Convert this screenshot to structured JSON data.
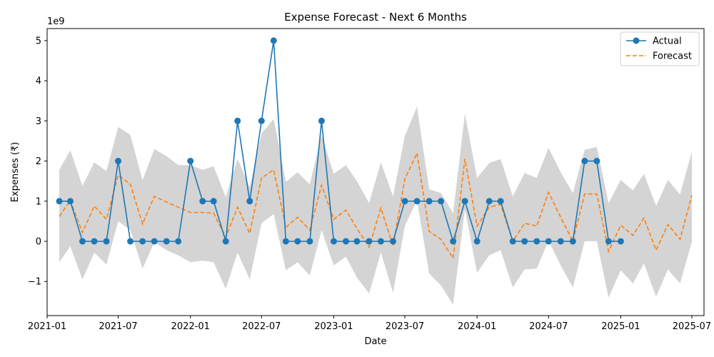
{
  "chart_data": {
    "type": "line",
    "title": "Expense Forecast - Next 6 Months",
    "xlabel": "Date",
    "ylabel": "Expenses (₹)",
    "y_offset_text": "1e9",
    "y_multiplier": 1000000000,
    "xlim": [
      "2021-01-01",
      "2025-08-01"
    ],
    "ylim": [
      -1.85,
      5.3
    ],
    "x_ticks": [
      "2021-01",
      "2021-07",
      "2022-01",
      "2022-07",
      "2023-01",
      "2023-07",
      "2024-01",
      "2024-07",
      "2025-01",
      "2025-07"
    ],
    "y_ticks": [
      -1,
      0,
      1,
      2,
      3,
      4,
      5
    ],
    "legend_position": "top-right",
    "colors": {
      "actual": "#1f77b4",
      "forecast": "#ff7f0e",
      "band": "#bdbdbd"
    },
    "series": [
      {
        "name": "Actual",
        "style": "solid line with circle markers",
        "x": [
          "2021-02",
          "2021-03",
          "2021-04",
          "2021-05",
          "2021-06",
          "2021-07",
          "2021-08",
          "2021-09",
          "2021-10",
          "2021-11",
          "2021-12",
          "2022-01",
          "2022-02",
          "2022-03",
          "2022-04",
          "2022-05",
          "2022-06",
          "2022-07",
          "2022-08",
          "2022-09",
          "2022-10",
          "2022-11",
          "2022-12",
          "2023-01",
          "2023-02",
          "2023-03",
          "2023-04",
          "2023-05",
          "2023-06",
          "2023-07",
          "2023-08",
          "2023-09",
          "2023-10",
          "2023-11",
          "2023-12",
          "2024-01",
          "2024-02",
          "2024-03",
          "2024-04",
          "2024-05",
          "2024-06",
          "2024-07",
          "2024-08",
          "2024-09",
          "2024-10",
          "2024-11",
          "2024-12",
          "2025-01"
        ],
        "values": [
          1,
          1,
          0,
          0,
          0,
          2,
          0,
          0,
          0,
          0,
          0,
          2,
          1,
          1,
          0,
          3,
          1,
          3,
          5,
          0,
          0,
          0,
          3,
          0,
          0,
          0,
          0,
          0,
          0,
          1,
          1,
          1,
          1,
          0,
          1,
          0,
          1,
          1,
          0,
          0,
          0,
          0,
          0,
          0,
          2,
          2,
          0,
          0
        ]
      },
      {
        "name": "Forecast",
        "style": "dashed line",
        "x": [
          "2021-02",
          "2021-03",
          "2021-04",
          "2021-05",
          "2021-06",
          "2021-07",
          "2021-08",
          "2021-09",
          "2021-10",
          "2021-11",
          "2021-12",
          "2022-01",
          "2022-02",
          "2022-03",
          "2022-04",
          "2022-05",
          "2022-06",
          "2022-07",
          "2022-08",
          "2022-09",
          "2022-10",
          "2022-11",
          "2022-12",
          "2023-01",
          "2023-02",
          "2023-03",
          "2023-04",
          "2023-05",
          "2023-06",
          "2023-07",
          "2023-08",
          "2023-09",
          "2023-10",
          "2023-11",
          "2023-12",
          "2024-01",
          "2024-02",
          "2024-03",
          "2024-04",
          "2024-05",
          "2024-06",
          "2024-07",
          "2024-08",
          "2024-09",
          "2024-10",
          "2024-11",
          "2024-12",
          "2025-01",
          "2025-02",
          "2025-03",
          "2025-04",
          "2025-05",
          "2025-06",
          "2025-07"
        ],
        "values": [
          0.62,
          1.02,
          0.22,
          0.88,
          0.55,
          1.65,
          1.42,
          0.43,
          1.12,
          0.98,
          0.85,
          0.72,
          0.72,
          0.7,
          0.1,
          0.85,
          0.2,
          1.58,
          1.78,
          0.35,
          0.6,
          0.28,
          1.4,
          0.55,
          0.78,
          0.32,
          -0.15,
          0.83,
          -0.12,
          1.55,
          2.2,
          0.25,
          0.05,
          -0.42,
          2.05,
          0.38,
          0.85,
          0.92,
          0.0,
          0.45,
          0.38,
          1.22,
          0.6,
          0.0,
          1.18,
          1.18,
          -0.25,
          0.4,
          0.15,
          0.58,
          -0.22,
          0.42,
          0.05,
          1.15
        ]
      },
      {
        "name": "Confidence band",
        "style": "shaded area",
        "x": [
          "2021-02",
          "2021-03",
          "2021-04",
          "2021-05",
          "2021-06",
          "2021-07",
          "2021-08",
          "2021-09",
          "2021-10",
          "2021-11",
          "2021-12",
          "2022-01",
          "2022-02",
          "2022-03",
          "2022-04",
          "2022-05",
          "2022-06",
          "2022-07",
          "2022-08",
          "2022-09",
          "2022-10",
          "2022-11",
          "2022-12",
          "2023-01",
          "2023-02",
          "2023-03",
          "2023-04",
          "2023-05",
          "2023-06",
          "2023-07",
          "2023-08",
          "2023-09",
          "2023-10",
          "2023-11",
          "2023-12",
          "2024-01",
          "2024-02",
          "2024-03",
          "2024-04",
          "2024-05",
          "2024-06",
          "2024-07",
          "2024-08",
          "2024-09",
          "2024-10",
          "2024-11",
          "2024-12",
          "2025-01",
          "2025-02",
          "2025-03",
          "2025-04",
          "2025-05",
          "2025-06",
          "2025-07"
        ],
        "lower": [
          -0.52,
          -0.12,
          -0.95,
          -0.28,
          -0.58,
          0.5,
          0.28,
          -0.68,
          -0.02,
          -0.22,
          -0.35,
          -0.52,
          -0.48,
          -0.52,
          -1.18,
          -0.28,
          -0.95,
          0.45,
          0.68,
          -0.72,
          -0.52,
          -0.85,
          0.28,
          -0.6,
          -0.38,
          -0.9,
          -1.3,
          -0.28,
          -1.28,
          0.38,
          1.02,
          -0.8,
          -1.1,
          -1.58,
          0.8,
          -0.78,
          -0.35,
          -0.22,
          -1.15,
          -0.7,
          -0.68,
          0.02,
          -0.6,
          -1.15,
          0.0,
          0.0,
          -1.4,
          -0.72,
          -1.05,
          -0.55,
          -1.38,
          -0.7,
          -1.05,
          -0.02
        ],
        "upper": [
          1.78,
          2.27,
          1.38,
          1.97,
          1.75,
          2.85,
          2.65,
          1.52,
          2.3,
          2.12,
          1.9,
          1.9,
          1.78,
          1.87,
          1.1,
          2.05,
          1.35,
          2.68,
          3.05,
          1.48,
          1.72,
          1.42,
          2.65,
          1.68,
          1.9,
          1.5,
          0.95,
          1.97,
          1.12,
          2.62,
          3.35,
          1.3,
          1.2,
          0.7,
          3.18,
          1.58,
          1.95,
          2.05,
          1.12,
          1.7,
          1.58,
          2.33,
          1.72,
          1.2,
          2.28,
          2.35,
          0.95,
          1.53,
          1.27,
          1.68,
          0.88,
          1.53,
          1.17,
          2.23
        ]
      }
    ]
  }
}
